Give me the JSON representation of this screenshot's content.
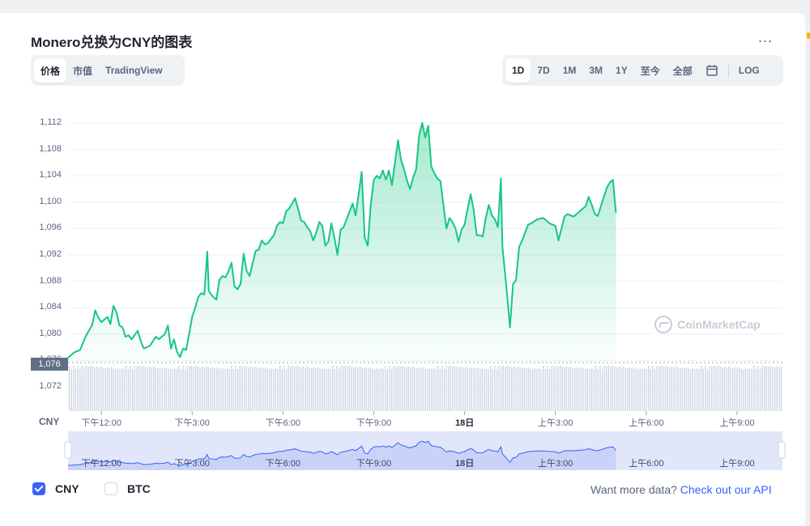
{
  "title": "Monero兑换为CNY的图表",
  "more_label": "...",
  "left_tabs": [
    {
      "label": "价格",
      "active": true
    },
    {
      "label": "市值",
      "active": false
    },
    {
      "label": "TradingView",
      "active": false
    }
  ],
  "range_tabs": [
    {
      "label": "1D",
      "active": true
    },
    {
      "label": "7D",
      "active": false
    },
    {
      "label": "1M",
      "active": false
    },
    {
      "label": "3M",
      "active": false
    },
    {
      "label": "1Y",
      "active": false
    },
    {
      "label": "至今",
      "active": false
    },
    {
      "label": "全部",
      "active": false
    }
  ],
  "calendar_icon": "calendar-icon",
  "log_label": "LOG",
  "current_price_badge": "1,076",
  "watermark": "CoinMarketCap",
  "legend": [
    {
      "label": "CNY",
      "checked": true
    },
    {
      "label": "BTC",
      "checked": false
    }
  ],
  "api_text": "Want more data?",
  "api_link": "Check out our API",
  "colors": {
    "line": "#16c784",
    "accent": "#3861fb",
    "badge": "#616e85",
    "volume": "#cfd6e4",
    "navigator_fill": "#e1e6fb"
  },
  "chart_data": {
    "type": "area",
    "ylabel": "CNY",
    "ylim": [
      1068,
      1114
    ],
    "yticks": [
      1072,
      1076,
      1080,
      1084,
      1088,
      1092,
      1096,
      1100,
      1104,
      1108,
      1112
    ],
    "ytick_labels": [
      "1,072",
      "1,076",
      "1,080",
      "1,084",
      "1,088",
      "1,092",
      "1,096",
      "1,100",
      "1,104",
      "1,108",
      "1,112"
    ],
    "xlim": [
      10.9,
      34.5
    ],
    "xticks": [
      {
        "x": 12,
        "label": "下午12:00"
      },
      {
        "x": 15,
        "label": "下午3:00"
      },
      {
        "x": 18,
        "label": "下午6:00"
      },
      {
        "x": 21,
        "label": "下午9:00"
      },
      {
        "x": 24,
        "label": "18日",
        "bold": true
      },
      {
        "x": 27,
        "label": "上午3:00"
      },
      {
        "x": 30,
        "label": "上午6:00"
      },
      {
        "x": 33,
        "label": "上午9:00"
      }
    ],
    "grid": true,
    "series": [
      {
        "values": [
          [
            10.9,
            1076.4
          ],
          [
            11.1,
            1077.2
          ],
          [
            11.3,
            1077.6
          ],
          [
            11.5,
            1079.8
          ],
          [
            11.7,
            1081.4
          ],
          [
            11.8,
            1083.6
          ],
          [
            11.9,
            1082.5
          ],
          [
            12.0,
            1081.8
          ],
          [
            12.2,
            1082.6
          ],
          [
            12.3,
            1081.5
          ],
          [
            12.4,
            1084.3
          ],
          [
            12.5,
            1083.3
          ],
          [
            12.6,
            1081.3
          ],
          [
            12.7,
            1081.0
          ],
          [
            12.8,
            1079.6
          ],
          [
            12.9,
            1079.8
          ],
          [
            13.0,
            1079.2
          ],
          [
            13.2,
            1080.5
          ],
          [
            13.3,
            1079.0
          ],
          [
            13.4,
            1077.8
          ],
          [
            13.5,
            1078.0
          ],
          [
            13.6,
            1078.2
          ],
          [
            13.8,
            1079.6
          ],
          [
            13.9,
            1079.2
          ],
          [
            14.1,
            1080.0
          ],
          [
            14.2,
            1081.3
          ],
          [
            14.3,
            1077.8
          ],
          [
            14.4,
            1079.2
          ],
          [
            14.5,
            1077.3
          ],
          [
            14.6,
            1076.5
          ],
          [
            14.7,
            1077.8
          ],
          [
            14.8,
            1077.6
          ],
          [
            14.9,
            1080.0
          ],
          [
            15.0,
            1082.6
          ],
          [
            15.1,
            1084.0
          ],
          [
            15.2,
            1085.6
          ],
          [
            15.3,
            1086.2
          ],
          [
            15.4,
            1086.0
          ],
          [
            15.5,
            1092.5
          ],
          [
            15.55,
            1086.5
          ],
          [
            15.7,
            1085.6
          ],
          [
            15.8,
            1085.2
          ],
          [
            15.9,
            1088.2
          ],
          [
            16.0,
            1088.8
          ],
          [
            16.1,
            1088.6
          ],
          [
            16.2,
            1089.5
          ],
          [
            16.3,
            1090.8
          ],
          [
            16.4,
            1087.2
          ],
          [
            16.5,
            1086.8
          ],
          [
            16.6,
            1087.6
          ],
          [
            16.7,
            1092.2
          ],
          [
            16.8,
            1089.6
          ],
          [
            16.9,
            1088.8
          ],
          [
            17.0,
            1090.8
          ],
          [
            17.1,
            1092.6
          ],
          [
            17.2,
            1092.8
          ],
          [
            17.3,
            1094.2
          ],
          [
            17.4,
            1093.6
          ],
          [
            17.5,
            1093.8
          ],
          [
            17.6,
            1094.4
          ],
          [
            17.7,
            1095.0
          ],
          [
            17.8,
            1096.4
          ],
          [
            17.9,
            1097.0
          ],
          [
            18.0,
            1096.8
          ],
          [
            18.1,
            1098.6
          ],
          [
            18.2,
            1099.0
          ],
          [
            18.3,
            1099.8
          ],
          [
            18.4,
            1100.6
          ],
          [
            18.5,
            1099.0
          ],
          [
            18.6,
            1097.2
          ],
          [
            18.7,
            1097.0
          ],
          [
            18.8,
            1096.2
          ],
          [
            18.9,
            1095.6
          ],
          [
            19.0,
            1094.2
          ],
          [
            19.1,
            1095.4
          ],
          [
            19.2,
            1097.0
          ],
          [
            19.3,
            1096.4
          ],
          [
            19.4,
            1093.4
          ],
          [
            19.5,
            1094.0
          ],
          [
            19.6,
            1096.8
          ],
          [
            19.7,
            1094.6
          ],
          [
            19.8,
            1092.0
          ],
          [
            19.9,
            1095.8
          ],
          [
            20.0,
            1096.2
          ],
          [
            20.2,
            1098.6
          ],
          [
            20.3,
            1099.8
          ],
          [
            20.4,
            1098.0
          ],
          [
            20.5,
            1101.2
          ],
          [
            20.6,
            1104.6
          ],
          [
            20.7,
            1094.6
          ],
          [
            20.8,
            1093.4
          ],
          [
            20.9,
            1099.6
          ],
          [
            21.0,
            1103.4
          ],
          [
            21.1,
            1104.0
          ],
          [
            21.2,
            1103.6
          ],
          [
            21.3,
            1104.8
          ],
          [
            21.4,
            1103.4
          ],
          [
            21.5,
            1104.8
          ],
          [
            21.6,
            1102.6
          ],
          [
            21.7,
            1106.0
          ],
          [
            21.8,
            1109.4
          ],
          [
            21.9,
            1106.4
          ],
          [
            22.0,
            1105.0
          ],
          [
            22.1,
            1103.2
          ],
          [
            22.2,
            1102.0
          ],
          [
            22.3,
            1103.8
          ],
          [
            22.4,
            1105.0
          ],
          [
            22.5,
            1110.2
          ],
          [
            22.6,
            1112.0
          ],
          [
            22.7,
            1109.8
          ],
          [
            22.8,
            1111.6
          ],
          [
            22.9,
            1105.4
          ],
          [
            23.0,
            1104.4
          ],
          [
            23.1,
            1103.6
          ],
          [
            23.2,
            1103.2
          ],
          [
            23.3,
            1099.6
          ],
          [
            23.4,
            1096.0
          ],
          [
            23.5,
            1097.6
          ],
          [
            23.6,
            1097.0
          ],
          [
            23.7,
            1096.0
          ],
          [
            23.8,
            1094.0
          ],
          [
            23.9,
            1095.8
          ],
          [
            24.0,
            1096.6
          ],
          [
            24.1,
            1099.0
          ],
          [
            24.2,
            1101.2
          ],
          [
            24.3,
            1098.8
          ],
          [
            24.4,
            1095.0
          ],
          [
            24.5,
            1095.0
          ],
          [
            24.6,
            1094.8
          ],
          [
            24.7,
            1097.6
          ],
          [
            24.8,
            1099.6
          ],
          [
            24.9,
            1098.0
          ],
          [
            25.0,
            1097.4
          ],
          [
            25.1,
            1096.2
          ],
          [
            25.2,
            1103.6
          ],
          [
            25.25,
            1093.2
          ],
          [
            25.4,
            1086.2
          ],
          [
            25.5,
            1081.0
          ],
          [
            25.6,
            1087.6
          ],
          [
            25.7,
            1088.2
          ],
          [
            25.8,
            1093.2
          ],
          [
            25.9,
            1094.2
          ],
          [
            26.0,
            1095.4
          ],
          [
            26.1,
            1096.6
          ],
          [
            26.2,
            1096.8
          ],
          [
            26.4,
            1097.4
          ],
          [
            26.6,
            1097.6
          ],
          [
            26.8,
            1096.8
          ],
          [
            27.0,
            1096.4
          ],
          [
            27.1,
            1094.2
          ],
          [
            27.2,
            1096.0
          ],
          [
            27.3,
            1097.8
          ],
          [
            27.4,
            1098.2
          ],
          [
            27.6,
            1097.8
          ],
          [
            27.8,
            1098.6
          ],
          [
            28.0,
            1099.4
          ],
          [
            28.1,
            1100.8
          ],
          [
            28.2,
            1099.6
          ],
          [
            28.3,
            1098.2
          ],
          [
            28.4,
            1097.9
          ],
          [
            28.6,
            1100.8
          ],
          [
            28.7,
            1102.2
          ],
          [
            28.8,
            1103.0
          ],
          [
            28.9,
            1103.4
          ],
          [
            29.0,
            1098.4
          ]
        ]
      }
    ],
    "navigator": {
      "xticks": [
        {
          "x": 12,
          "label": "下午12:00"
        },
        {
          "x": 15,
          "label": "下午3:00"
        },
        {
          "x": 18,
          "label": "下午6:00"
        },
        {
          "x": 21,
          "label": "下午9:00"
        },
        {
          "x": 24,
          "label": "18日",
          "bold": true
        },
        {
          "x": 27,
          "label": "上午3:00"
        },
        {
          "x": 30,
          "label": "上午6:00"
        },
        {
          "x": 33,
          "label": "上午9:00"
        }
      ]
    }
  }
}
